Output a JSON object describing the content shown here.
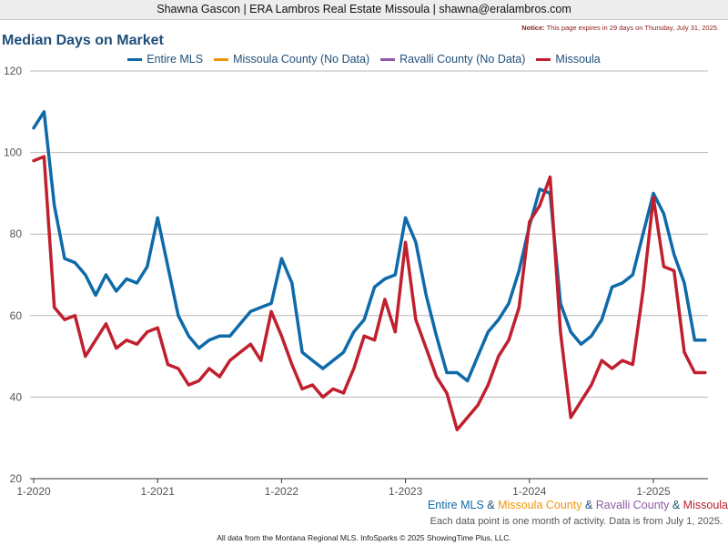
{
  "header": {
    "agent_line": "Shawna Gascon | ERA Lambros Real Estate Missoula | shawna@eralambros.com",
    "notice_label": "Notice:",
    "notice_text": "This page expires in 29 days on Thursday, July 31, 2025."
  },
  "footer": {
    "amp": " & ",
    "activity_note": "Each data point is one month of activity. Data is from July 1, 2025.",
    "credits": "All data from the Montana Regional MLS. InfoSparks © 2025 ShowingTime Plus, LLC."
  },
  "colors": {
    "entire_mls": "#0e6aa8",
    "missoula_county": "#f0960a",
    "ravalli_county": "#8e5aa8",
    "missoula": "#c0202e",
    "grid": "#b8b8b8",
    "axis_text": "#555555"
  },
  "chart_data": {
    "type": "line",
    "title": "Median Days on Market",
    "xlabel": "",
    "ylabel": "",
    "ylim": [
      20,
      120
    ],
    "yticks": [
      20,
      40,
      60,
      80,
      100,
      120
    ],
    "grid": true,
    "legend_position": "top",
    "x_start": "2020-01",
    "x_end": "2025-06",
    "x_ticks": [
      {
        "label": "1-2020",
        "month_index": 0
      },
      {
        "label": "1-2021",
        "month_index": 12
      },
      {
        "label": "1-2022",
        "month_index": 24
      },
      {
        "label": "1-2023",
        "month_index": 36
      },
      {
        "label": "1-2024",
        "month_index": 48
      },
      {
        "label": "1-2025",
        "month_index": 60
      }
    ],
    "series": [
      {
        "name": "Entire MLS",
        "color": "#0e6aa8",
        "values": [
          106,
          110,
          87,
          74,
          73,
          70,
          65,
          70,
          66,
          69,
          68,
          72,
          84,
          72,
          60,
          55,
          52,
          54,
          55,
          55,
          58,
          61,
          62,
          63,
          74,
          68,
          51,
          49,
          47,
          49,
          51,
          56,
          59,
          67,
          69,
          70,
          84,
          78,
          65,
          55,
          46,
          46,
          44,
          50,
          56,
          59,
          63,
          71,
          82,
          91,
          90,
          63,
          56,
          53,
          55,
          59,
          67,
          68,
          70,
          80,
          90,
          85,
          75,
          68,
          54,
          54
        ]
      },
      {
        "name": "Missoula County (No Data)",
        "color": "#f0960a",
        "values": []
      },
      {
        "name": "Ravalli County (No Data)",
        "color": "#8e5aa8",
        "values": []
      },
      {
        "name": "Missoula",
        "color": "#c0202e",
        "values": [
          98,
          99,
          62,
          59,
          60,
          50,
          54,
          58,
          52,
          54,
          53,
          56,
          57,
          48,
          47,
          43,
          44,
          47,
          45,
          49,
          51,
          53,
          49,
          61,
          55,
          48,
          42,
          43,
          40,
          42,
          41,
          47,
          55,
          54,
          64,
          56,
          78,
          59,
          52,
          45,
          41,
          32,
          35,
          38,
          43,
          50,
          54,
          62,
          83,
          87,
          94,
          56,
          35,
          39,
          43,
          49,
          47,
          49,
          48,
          66,
          89,
          72,
          71,
          51,
          46,
          46
        ]
      }
    ],
    "footer_series_names": [
      {
        "name": "Entire MLS",
        "color": "#0e6aa8"
      },
      {
        "name": "Missoula County",
        "color": "#f0960a"
      },
      {
        "name": "Ravalli County",
        "color": "#8e5aa8"
      },
      {
        "name": "Missoula",
        "color": "#c0202e"
      }
    ]
  }
}
